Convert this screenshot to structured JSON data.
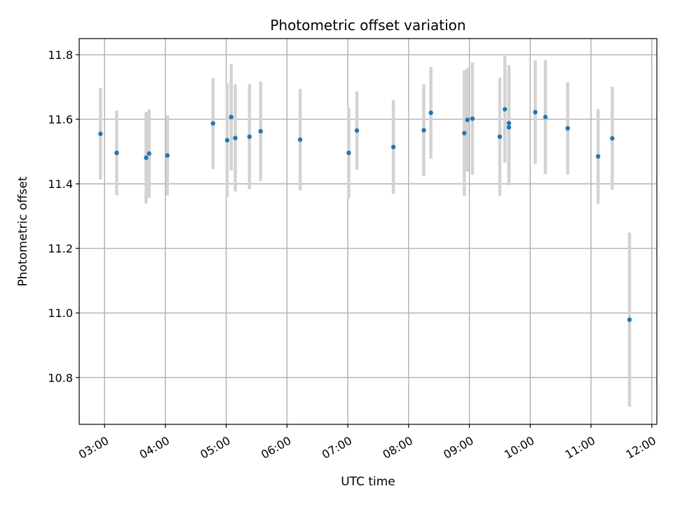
{
  "chart_data": {
    "type": "scatter",
    "title": "Photometric offset variation",
    "xlabel": "UTC time",
    "ylabel": "Photometric offset",
    "x_ticks": [
      "03:00",
      "04:00",
      "05:00",
      "06:00",
      "07:00",
      "08:00",
      "09:00",
      "10:00",
      "11:00",
      "12:00"
    ],
    "y_ticks": [
      "10.8",
      "11.0",
      "11.2",
      "11.4",
      "11.6",
      "11.8"
    ],
    "ylim": [
      10.655,
      11.85
    ],
    "xlim": [
      "02:35",
      "12:05"
    ],
    "grid": true,
    "colors": {
      "point": "#1f77b4",
      "errorbar": "#d3d3d3",
      "grid": "#b0b0b0"
    },
    "points": [
      {
        "t": "02:56",
        "y": 11.555,
        "err": 0.142
      },
      {
        "t": "03:12",
        "y": 11.496,
        "err": 0.131
      },
      {
        "t": "03:41",
        "y": 11.481,
        "err": 0.142
      },
      {
        "t": "03:44",
        "y": 11.494,
        "err": 0.137
      },
      {
        "t": "04:02",
        "y": 11.488,
        "err": 0.124
      },
      {
        "t": "04:47",
        "y": 11.587,
        "err": 0.141
      },
      {
        "t": "05:01",
        "y": 11.535,
        "err": 0.176
      },
      {
        "t": "05:05",
        "y": 11.607,
        "err": 0.165
      },
      {
        "t": "05:09",
        "y": 11.542,
        "err": 0.166
      },
      {
        "t": "05:23",
        "y": 11.546,
        "err": 0.163
      },
      {
        "t": "05:34",
        "y": 11.563,
        "err": 0.154
      },
      {
        "t": "06:13",
        "y": 11.537,
        "err": 0.157
      },
      {
        "t": "07:01",
        "y": 11.496,
        "err": 0.14
      },
      {
        "t": "07:09",
        "y": 11.565,
        "err": 0.121
      },
      {
        "t": "07:45",
        "y": 11.514,
        "err": 0.145
      },
      {
        "t": "08:15",
        "y": 11.566,
        "err": 0.142
      },
      {
        "t": "08:22",
        "y": 11.62,
        "err": 0.142
      },
      {
        "t": "08:55",
        "y": 11.557,
        "err": 0.195
      },
      {
        "t": "08:58",
        "y": 11.598,
        "err": 0.16
      },
      {
        "t": "09:03",
        "y": 11.602,
        "err": 0.174
      },
      {
        "t": "09:30",
        "y": 11.546,
        "err": 0.183
      },
      {
        "t": "09:35",
        "y": 11.631,
        "err": 0.165
      },
      {
        "t": "09:39",
        "y": 11.575,
        "err": 0.18
      },
      {
        "t": "09:39",
        "y": 11.588,
        "err": 0.18
      },
      {
        "t": "10:05",
        "y": 11.622,
        "err": 0.16
      },
      {
        "t": "10:15",
        "y": 11.607,
        "err": 0.177
      },
      {
        "t": "10:37",
        "y": 11.572,
        "err": 0.143
      },
      {
        "t": "11:07",
        "y": 11.485,
        "err": 0.147
      },
      {
        "t": "11:21",
        "y": 11.541,
        "err": 0.16
      },
      {
        "t": "11:38",
        "y": 10.979,
        "err": 0.27
      }
    ]
  }
}
